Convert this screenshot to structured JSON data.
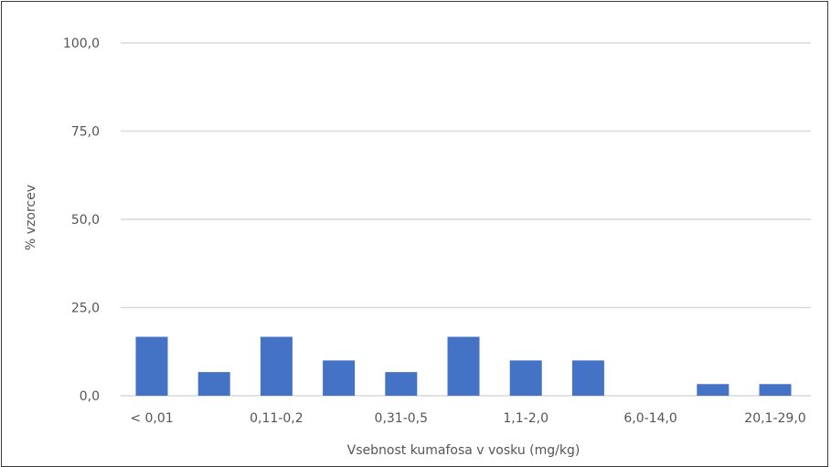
{
  "chart_data": {
    "type": "bar",
    "title": "",
    "xlabel": "Vsebnost kumafosa v vosku (mg/kg)",
    "ylabel": "% vzorcev",
    "ylim": [
      0,
      100
    ],
    "yticks": [
      "0,0",
      "25,0",
      "50,0",
      "75,0",
      "100,0"
    ],
    "ytick_values": [
      0,
      25,
      50,
      75,
      100
    ],
    "categories": [
      "< 0,01",
      "",
      "0,11-0,2",
      "",
      "0,31-0,5",
      "",
      "1,1-2,0",
      "",
      "6,0-14,0",
      "",
      "20,1-29,0"
    ],
    "values": [
      16.7,
      6.7,
      16.7,
      10.0,
      6.7,
      16.7,
      10.0,
      10.0,
      0.0,
      3.3,
      3.3
    ],
    "grid": true,
    "legend": "none",
    "bar_color": "#4472c4",
    "grid_color": "#d9d9d9"
  }
}
